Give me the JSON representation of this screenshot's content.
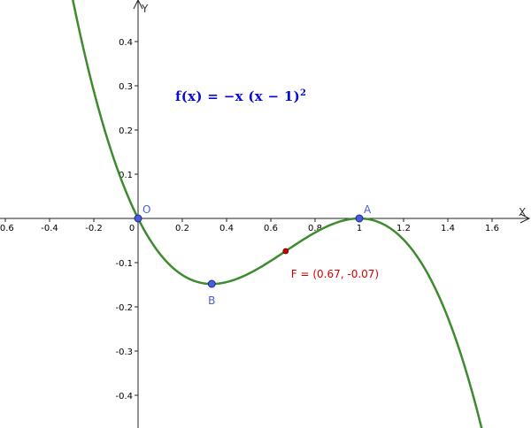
{
  "chart_data": {
    "type": "line",
    "xlabel": "X",
    "ylabel": "Y",
    "xlim": [
      -0.62,
      1.76
    ],
    "ylim": [
      -0.48,
      0.48
    ],
    "x_ticks": [
      "-0.6",
      "-0.4",
      "-0.2",
      "0.2",
      "0.4",
      "0.6",
      "0.8",
      "1",
      "1.2",
      "1.4",
      "1.6"
    ],
    "x_tick_values": [
      -0.6,
      -0.4,
      -0.2,
      0.2,
      0.4,
      0.6,
      0.8,
      1,
      1.2,
      1.4,
      1.6
    ],
    "origin_label": "0",
    "y_ticks": [
      "0.4",
      "0.3",
      "0.2",
      "0.1",
      "-0.1",
      "-0.2",
      "-0.3",
      "-0.4"
    ],
    "y_tick_values": [
      0.4,
      0.3,
      0.2,
      0.1,
      -0.1,
      -0.2,
      -0.3,
      -0.4
    ],
    "function": {
      "label_lhs": "f(x) = ",
      "label_rhs": "−x (x − 1)",
      "label_exp": "2",
      "color": "#3d8b2e",
      "x_range": [
        -0.3,
        1.6
      ],
      "samples": 200
    },
    "points": [
      {
        "name": "O",
        "x": 0,
        "y": 0,
        "color": "#4a5cd9",
        "label_color": "#4a5cd9",
        "label_pos": "top-right"
      },
      {
        "name": "B",
        "x": 0.333,
        "y": -0.148,
        "color": "#4a5cd9",
        "label_color": "#4a5cd9",
        "label_pos": "below"
      },
      {
        "name": "A",
        "x": 1,
        "y": 0,
        "color": "#4a5cd9",
        "label_color": "#4a5cd9",
        "label_pos": "top-right"
      }
    ],
    "inflection": {
      "x": 0.667,
      "y": -0.074,
      "label": "F = (0.67, -0.07)",
      "color": "#d40000"
    }
  }
}
